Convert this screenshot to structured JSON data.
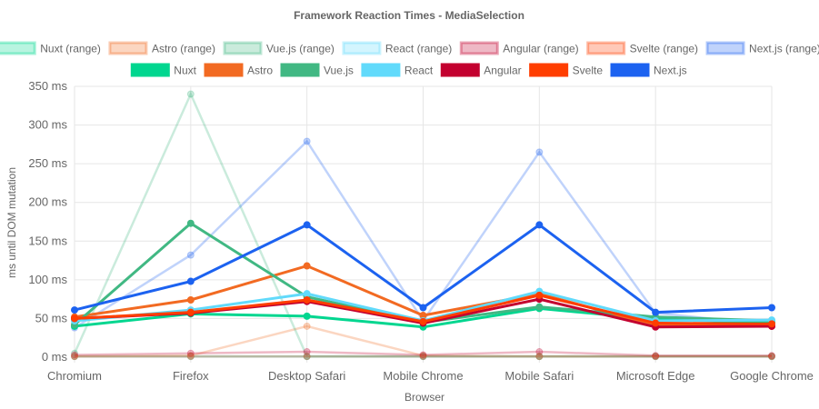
{
  "chart_data": {
    "type": "line",
    "title": "Framework Reaction Times - MediaSelection",
    "xlabel": "Browser",
    "ylabel": "ms until DOM mutation",
    "ylim": [
      0,
      350
    ],
    "yticks": [
      0,
      50,
      100,
      150,
      200,
      250,
      300,
      350
    ],
    "ytick_suffix": " ms",
    "grid": true,
    "legend_position": "top",
    "categories": [
      "Chromium",
      "Firefox",
      "Desktop Safari",
      "Mobile Chrome",
      "Mobile Safari",
      "Microsoft Edge",
      "Google Chrome"
    ],
    "series": [
      {
        "name": "Nuxt (range)",
        "color": "#00d68f",
        "range": true,
        "values": [
          1,
          1,
          1,
          1,
          1,
          1,
          1
        ]
      },
      {
        "name": "Astro (range)",
        "color": "#f26a22",
        "range": true,
        "values": [
          1,
          2,
          40,
          2,
          1,
          1,
          1
        ]
      },
      {
        "name": "Vue.js (range)",
        "color": "#41b883",
        "range": true,
        "values": [
          5,
          340,
          1,
          1,
          1,
          1,
          1
        ]
      },
      {
        "name": "React (range)",
        "color": "#61dafb",
        "range": true,
        "values": [
          1,
          1,
          1,
          1,
          1,
          1,
          1
        ]
      },
      {
        "name": "Angular (range)",
        "color": "#c3002f",
        "range": true,
        "values": [
          3,
          5,
          7,
          3,
          7,
          2,
          2
        ]
      },
      {
        "name": "Svelte (range)",
        "color": "#ff3e00",
        "range": true,
        "values": [
          1,
          1,
          1,
          1,
          1,
          1,
          1
        ]
      },
      {
        "name": "Next.js (range)",
        "color": "#1c62f0",
        "range": true,
        "values": [
          38,
          132,
          279,
          47,
          265,
          57,
          42
        ]
      },
      {
        "name": "Nuxt",
        "color": "#00d68f",
        "range": false,
        "values": [
          40,
          56,
          53,
          39,
          63,
          49,
          45
        ]
      },
      {
        "name": "Astro",
        "color": "#f26a22",
        "range": false,
        "values": [
          52,
          74,
          118,
          54,
          82,
          41,
          40
        ]
      },
      {
        "name": "Vue.js",
        "color": "#41b883",
        "range": false,
        "values": [
          42,
          173,
          78,
          45,
          65,
          52,
          47
        ]
      },
      {
        "name": "React",
        "color": "#61dafb",
        "range": false,
        "values": [
          47,
          61,
          82,
          47,
          85,
          47,
          48
        ]
      },
      {
        "name": "Angular",
        "color": "#c3002f",
        "range": false,
        "values": [
          50,
          57,
          72,
          44,
          75,
          39,
          40
        ]
      },
      {
        "name": "Svelte",
        "color": "#ff3e00",
        "range": false,
        "values": [
          50,
          58,
          74,
          46,
          80,
          44,
          43
        ]
      },
      {
        "name": "Next.js",
        "color": "#1c62f0",
        "range": false,
        "values": [
          61,
          98,
          171,
          64,
          171,
          58,
          64
        ]
      }
    ]
  }
}
